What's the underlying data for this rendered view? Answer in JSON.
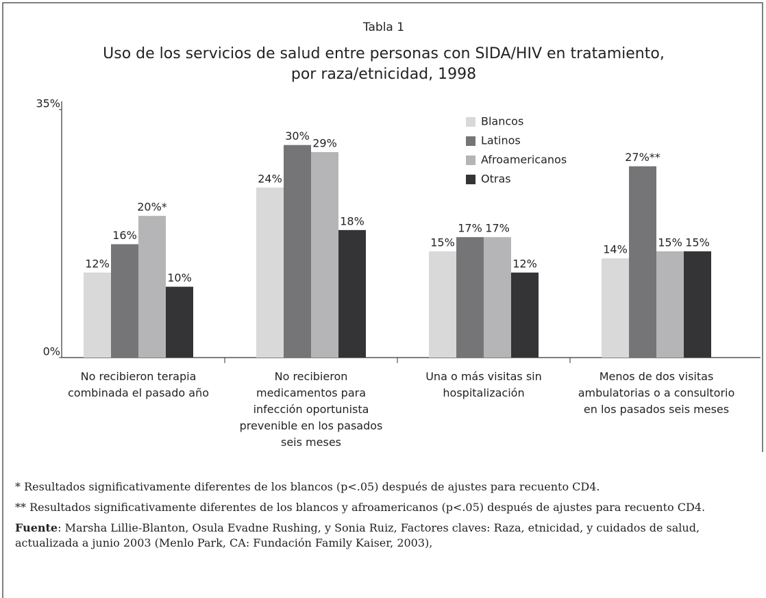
{
  "chart_data": {
    "type": "bar",
    "label": "Tabla 1",
    "title": "Uso de los servicios de salud entre personas con SIDA/HIV en tratamiento, por raza/etnicidad, 1998",
    "categories": [
      "No recibieron terapia combinada el pasado año",
      "No recibieron medicamentos para infección oportunista prevenible en los pasados seis meses",
      "Una o más visitas sin hospitalización",
      "Menos de dos visitas ambulatorias o a consultorio en los pasados seis meses"
    ],
    "series": [
      {
        "name": "Blancos",
        "color": "#d9d9d9",
        "values": [
          12,
          24,
          15,
          14
        ],
        "value_labels": [
          "12%",
          "24%",
          "15%",
          "14%"
        ]
      },
      {
        "name": "Latinos",
        "color": "#757577",
        "values": [
          16,
          30,
          17,
          27
        ],
        "value_labels": [
          "16%",
          "30%",
          "17%",
          "27%**"
        ]
      },
      {
        "name": "Afroamericanos",
        "color": "#b5b5b7",
        "values": [
          20,
          29,
          17,
          15
        ],
        "value_labels": [
          "20%*",
          "29%",
          "17%",
          "15%"
        ]
      },
      {
        "name": "Otras",
        "color": "#343436",
        "values": [
          10,
          18,
          12,
          15
        ],
        "value_labels": [
          "10%",
          "18%",
          "12%",
          "15%"
        ]
      }
    ],
    "ylim": [
      0,
      35
    ],
    "yticks": [
      {
        "value": 0,
        "label": "0%"
      },
      {
        "value": 35,
        "label": "35%"
      }
    ],
    "grid": false,
    "legend": "top-right",
    "notes": [
      "* Resultados significativamente diferentes de los blancos (p<.05) después de ajustes para recuento CD4.",
      "** Resultados significativamente diferentes de los blancos y afroamericanos (p<.05) después de ajustes para recuento CD4."
    ],
    "source": {
      "label": "Fuente",
      "text": ": Marsha Lillie-Blanton, Osula Evadne Rushing, y Sonia Ruiz, Factores claves: Raza, etnicidad, y cuidados de salud, actualizada a junio 2003 (Menlo Park, CA: Fundación Family Kaiser, 2003),"
    }
  }
}
